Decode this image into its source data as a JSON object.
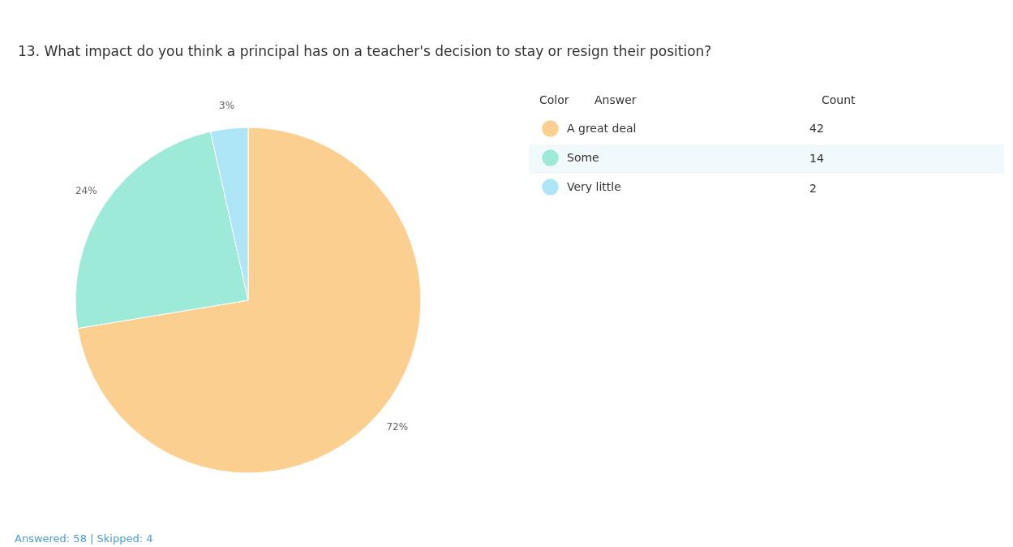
{
  "chart_data": {
    "type": "pie",
    "title": "13. What impact do you think a principal has on a teacher's decision to stay or resign their position?",
    "categories": [
      "A great deal",
      "Some",
      "Very little"
    ],
    "values": [
      72.4,
      24.1,
      3.5
    ],
    "colors": [
      "#fbcf8f",
      "#9eead9",
      "#aee5f7"
    ],
    "value_labels": [
      "72%",
      "24%",
      "3%"
    ],
    "legend": "right",
    "annotations": [
      "Color",
      "Answer",
      "Count",
      "42",
      "14",
      "2",
      "Answered: 58 | Skipped: 4"
    ]
  }
}
